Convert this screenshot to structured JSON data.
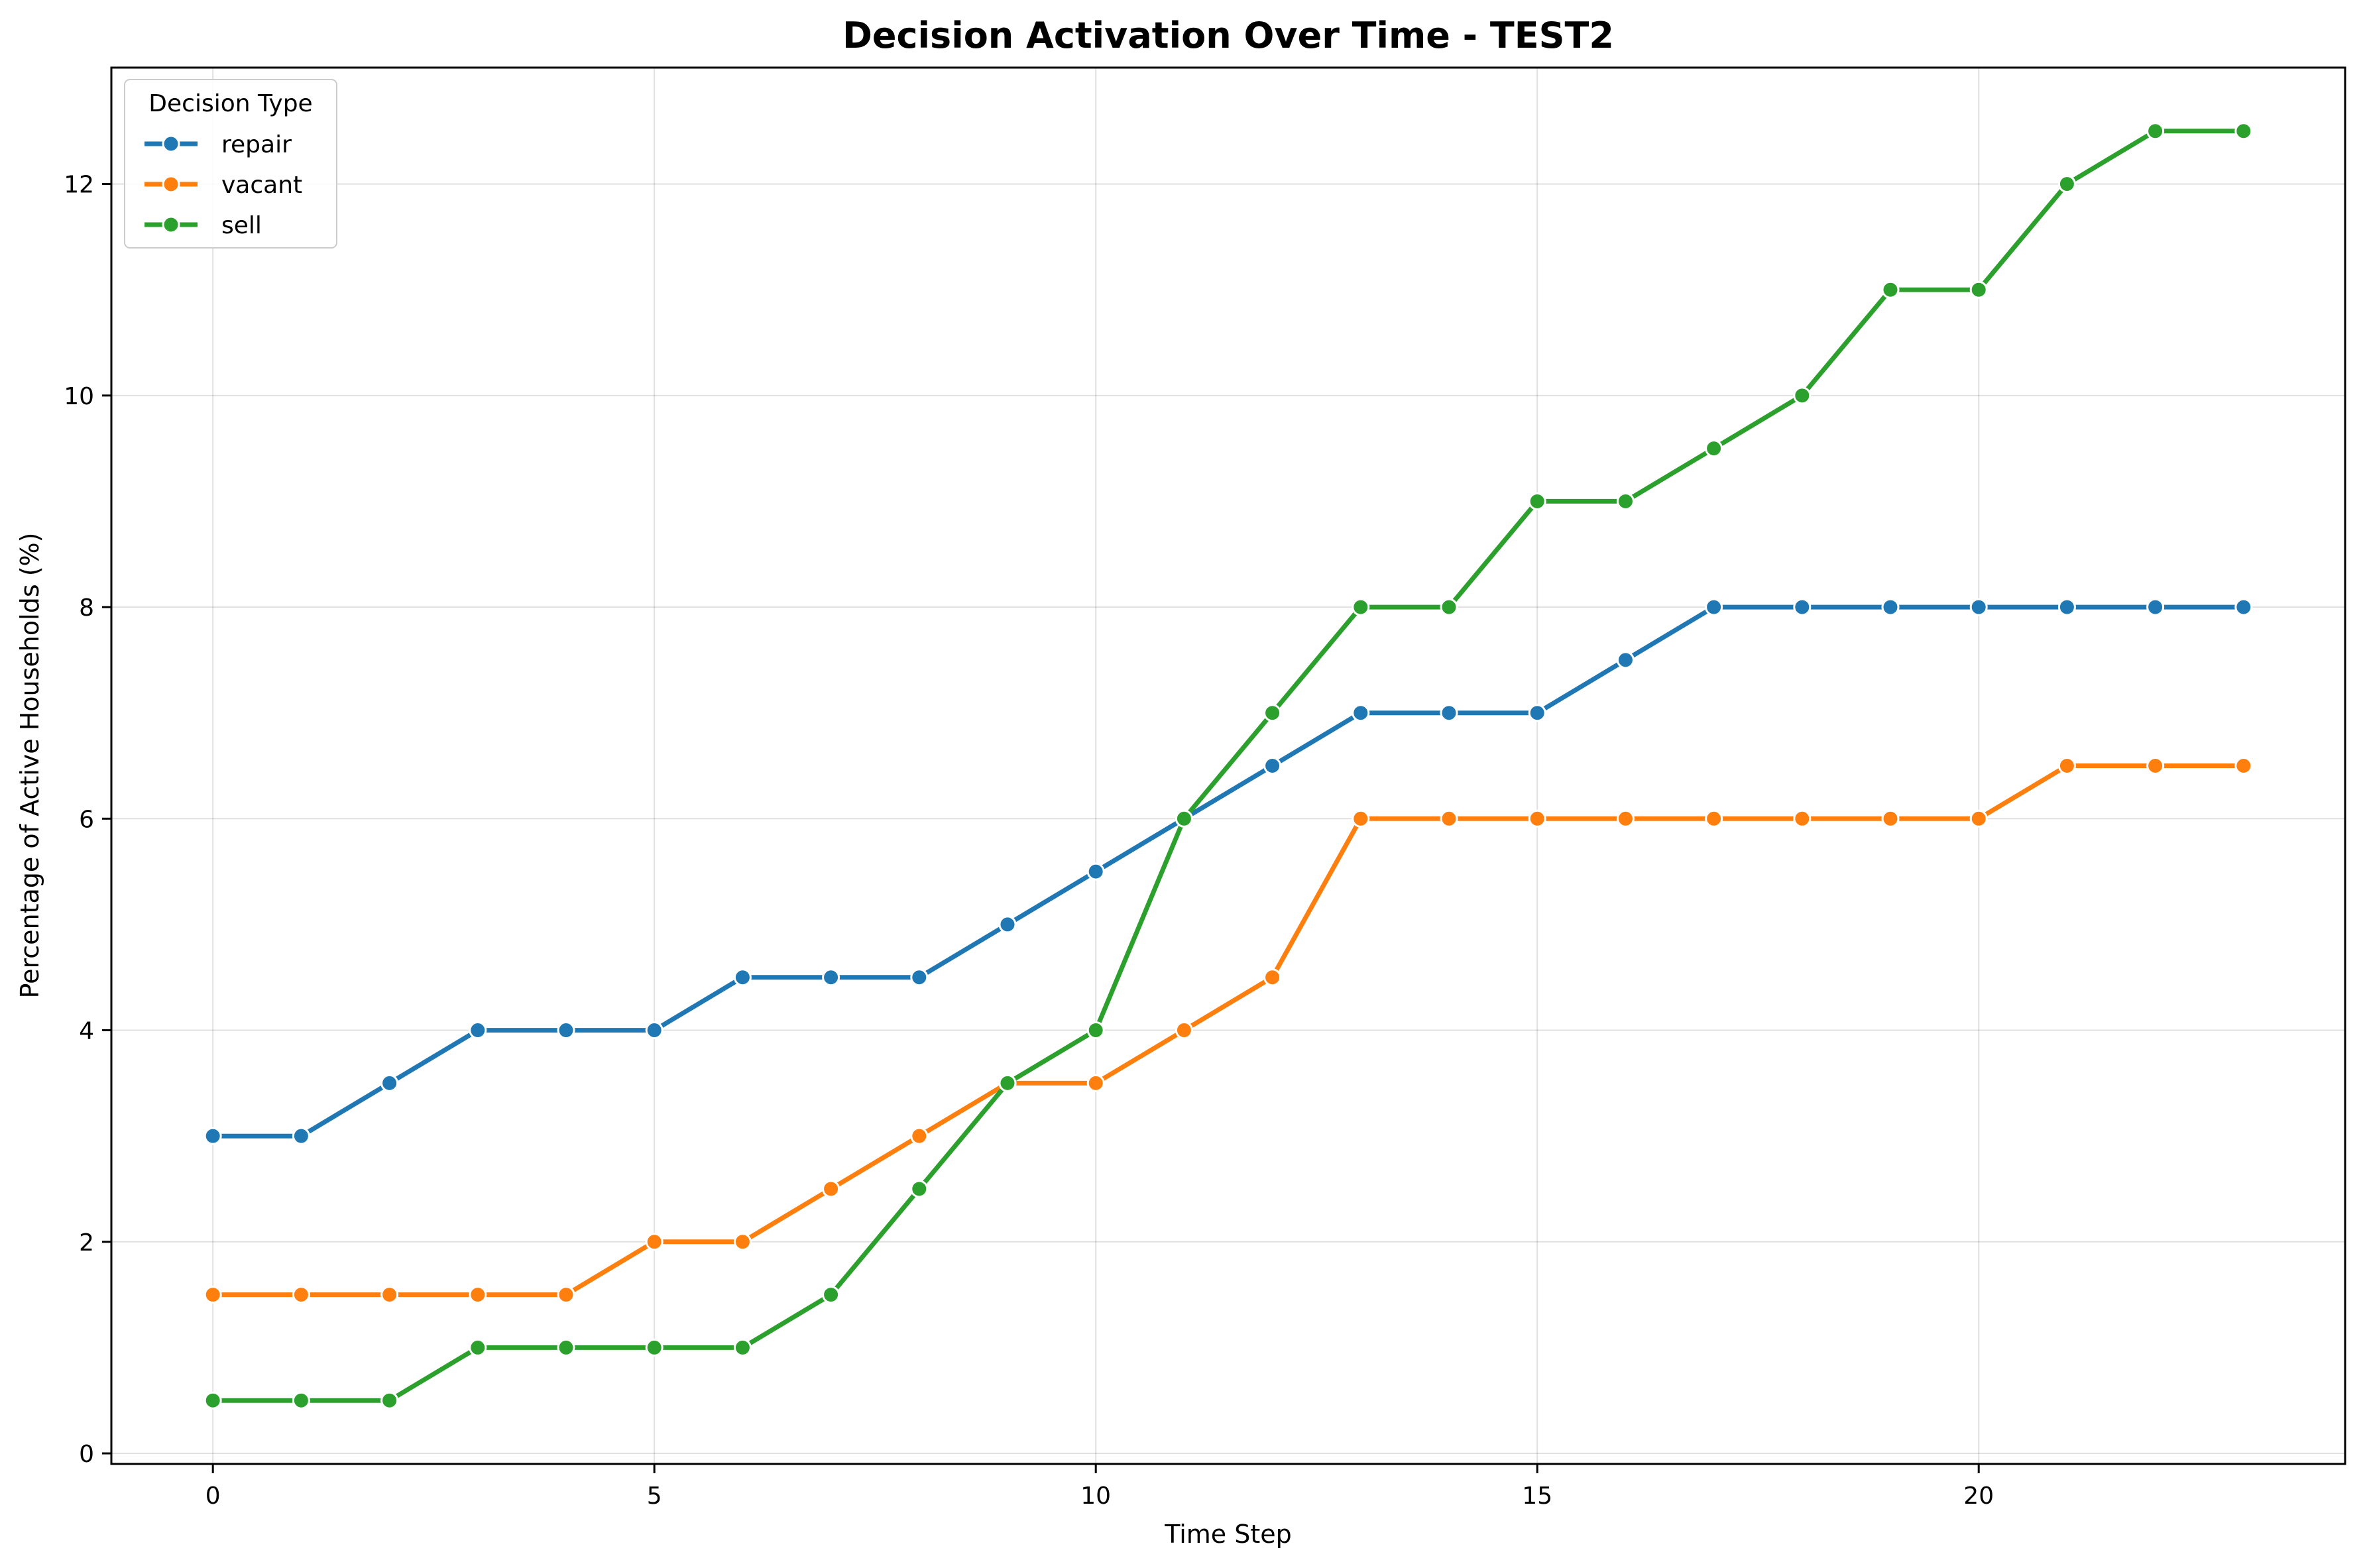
{
  "chart_data": {
    "type": "line",
    "title": "Decision Activation Over Time - TEST2",
    "xlabel": "Time Step",
    "ylabel": "Percentage of Active Households (%)",
    "xlim": [
      -1.15,
      24.15
    ],
    "ylim": [
      -0.1,
      13.1
    ],
    "xticks": [
      0,
      5,
      10,
      15,
      20
    ],
    "yticks": [
      0,
      2,
      4,
      6,
      8,
      10,
      12
    ],
    "grid": true,
    "legend": {
      "title": "Decision Type",
      "position": "top-left"
    },
    "x": [
      0,
      1,
      2,
      3,
      4,
      5,
      6,
      7,
      8,
      9,
      10,
      11,
      12,
      13,
      14,
      15,
      16,
      17,
      18,
      19,
      20,
      21,
      22,
      23
    ],
    "series": [
      {
        "name": "repair",
        "color": "#1f77b4",
        "values": [
          3,
          3,
          3.5,
          4,
          4,
          4,
          4.5,
          4.5,
          4.5,
          5,
          5.5,
          6,
          6.5,
          7,
          7,
          7,
          7.5,
          8,
          8,
          8,
          8,
          8,
          8,
          8
        ]
      },
      {
        "name": "vacant",
        "color": "#ff7f0e",
        "values": [
          1.5,
          1.5,
          1.5,
          1.5,
          1.5,
          2,
          2,
          2.5,
          3,
          3.5,
          3.5,
          4,
          4.5,
          6,
          6,
          6,
          6,
          6,
          6,
          6,
          6,
          6.5,
          6.5,
          6.5
        ]
      },
      {
        "name": "sell",
        "color": "#2ca02c",
        "values": [
          0.5,
          0.5,
          0.5,
          1,
          1,
          1,
          1,
          1.5,
          2.5,
          3.5,
          4,
          6,
          7,
          8,
          8,
          9,
          9,
          9.5,
          10,
          11,
          11,
          12,
          12.5,
          12.5
        ]
      }
    ]
  }
}
